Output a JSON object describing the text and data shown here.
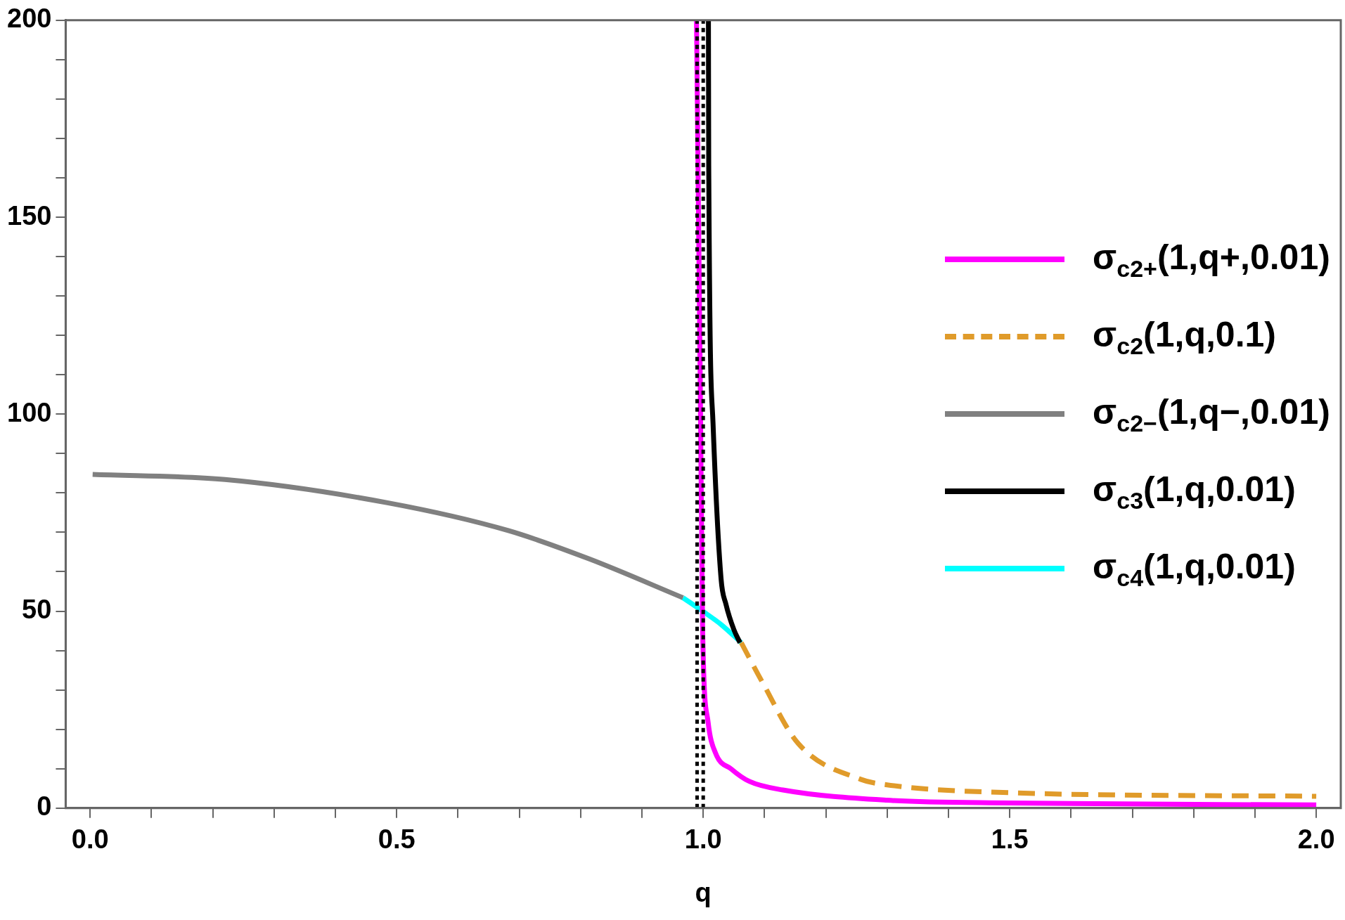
{
  "chart_data": {
    "type": "line",
    "xlabel": "q",
    "legend": "right",
    "xlim": [
      -0.04,
      2.04
    ],
    "ylim": [
      0,
      200
    ],
    "xticks": [
      {
        "value": 0,
        "label": "0.0"
      },
      {
        "value": 0.1,
        "label": null
      },
      {
        "value": 0.2,
        "label": null
      },
      {
        "value": 0.3,
        "label": null
      },
      {
        "value": 0.4,
        "label": null
      },
      {
        "value": 0.5,
        "label": "0.5"
      },
      {
        "value": 0.6,
        "label": null
      },
      {
        "value": 0.7,
        "label": null
      },
      {
        "value": 0.8,
        "label": null
      },
      {
        "value": 0.9,
        "label": null
      },
      {
        "value": 1,
        "label": "1.0"
      },
      {
        "value": 1.1,
        "label": null
      },
      {
        "value": 1.2,
        "label": null
      },
      {
        "value": 1.3,
        "label": null
      },
      {
        "value": 1.4,
        "label": null
      },
      {
        "value": 1.5,
        "label": "1.5"
      },
      {
        "value": 1.6,
        "label": null
      },
      {
        "value": 1.7,
        "label": null
      },
      {
        "value": 1.8,
        "label": null
      },
      {
        "value": 1.9,
        "label": null
      },
      {
        "value": 2,
        "label": "2.0"
      }
    ],
    "yticks": [
      0,
      {
        "value": 10,
        "label": null
      },
      {
        "value": 20,
        "label": null
      },
      {
        "value": 30,
        "label": null
      },
      {
        "value": 40,
        "label": null
      },
      50,
      {
        "value": 60,
        "label": null
      },
      {
        "value": 70,
        "label": null
      },
      {
        "value": 80,
        "label": null
      },
      {
        "value": 90,
        "label": null
      },
      100,
      {
        "value": 110,
        "label": null
      },
      {
        "value": 120,
        "label": null
      },
      {
        "value": 130,
        "label": null
      },
      {
        "value": 140,
        "label": null
      },
      150,
      {
        "value": 160,
        "label": null
      },
      {
        "value": 170,
        "label": null
      },
      {
        "value": 180,
        "label": null
      },
      {
        "value": 190,
        "label": null
      },
      200
    ],
    "grid": false,
    "marker": "none",
    "ref_lines": [
      {
        "axis": "x",
        "value": 0.99,
        "color": "#000000",
        "line_style": "dotted"
      },
      {
        "axis": "x",
        "value": 1.0,
        "color": "#000000",
        "line_style": "dotted"
      }
    ],
    "series": [
      {
        "name": "σ$_{c2+}$(1,q+,0.01)",
        "color": "#ff00ff",
        "line_style": "solid",
        "x": [
          0.989,
          0.995,
          0.999,
          1.008,
          1.02,
          1.046,
          1.075,
          1.13,
          1.3,
          1.5,
          2.0
        ],
        "values": [
          200,
          110.9,
          45.3,
          21.8,
          14,
          9.9,
          6.8,
          4.6,
          2,
          1.3,
          0.8
        ]
      },
      {
        "name": "σ$_{c2}$(1,q,0.1)",
        "color": "#e09b2a",
        "line_style": "dashed",
        "x": [
          1.062,
          1.096,
          1.155,
          1.257,
          1.3,
          1.5,
          2.0
        ],
        "values": [
          42,
          32.1,
          16.4,
          7.3,
          5.9,
          3.9,
          3.0
        ]
      },
      {
        "name": "σ$_{c2−}$(1,q−,0.01)",
        "color": "#808080",
        "line_style": "solid",
        "x": [
          0.004,
          0.22,
          0.485,
          0.683,
          0.815,
          0.967
        ],
        "values": [
          84.7,
          83.4,
          77.5,
          70.4,
          63.2,
          53.4
        ]
      },
      {
        "name": "σ$_{c3}$(1,q,0.01)",
        "color": "#000000",
        "line_style": "solid",
        "x": [
          1.0085,
          1.009,
          1.016,
          1.029,
          1.037,
          1.05,
          1.06
        ],
        "values": [
          200,
          163,
          97.7,
          58.4,
          51.8,
          45.3,
          42
        ]
      },
      {
        "name": "σ$_{c4}$(1,q,0.01)",
        "color": "#00ffff",
        "line_style": "solid",
        "x": [
          0.967,
          1.0,
          1.03,
          1.062
        ],
        "values": [
          53.4,
          49.9,
          46.5,
          42
        ]
      }
    ]
  }
}
